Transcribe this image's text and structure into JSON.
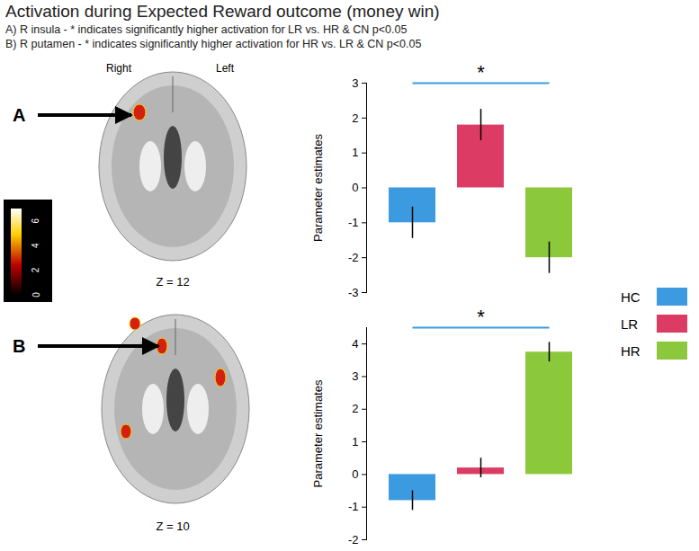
{
  "figure": {
    "title": "Activation during Expected Reward outcome (money win)",
    "notes": [
      "A) R insula - * indicates significantly higher activation for LR vs. HR & CN p<0.05",
      "B) R putamen - * indicates significantly higher activation for HR vs. LR & CN p<0.05"
    ],
    "side_labels": [
      "Right",
      "Left"
    ],
    "panels": [
      {
        "label": "A",
        "slice": "Z = 12"
      },
      {
        "label": "B",
        "slice": "Z = 10"
      }
    ],
    "colorbar": {
      "range": [
        0,
        7
      ],
      "ticks": [
        0,
        2,
        4,
        6
      ]
    }
  },
  "chart_data": [
    {
      "type": "bar",
      "ylabel": "Parameter estimates",
      "categories": [
        "HC",
        "LR",
        "HR"
      ],
      "values": [
        -1.0,
        1.8,
        -2.0
      ],
      "errors": [
        0.45,
        0.45,
        0.45
      ],
      "colors": [
        "#3c9be0",
        "#dc3c64",
        "#8cc83c"
      ],
      "ylim": [
        -3,
        3
      ],
      "yticks": [
        -3,
        -2,
        -1,
        0,
        1,
        2,
        3
      ],
      "annotation": "*",
      "tick_labels": "y"
    },
    {
      "type": "bar",
      "ylabel": "Parameter estimates",
      "categories": [
        "HC",
        "LR",
        "HR"
      ],
      "values": [
        -0.8,
        0.2,
        3.75
      ],
      "errors": [
        0.3,
        0.3,
        0.3
      ],
      "colors": [
        "#3c9be0",
        "#dc3c64",
        "#8cc83c"
      ],
      "ylim": [
        -2,
        4.5
      ],
      "yticks": [
        -2,
        -1,
        0,
        1,
        2,
        3,
        4
      ],
      "annotation": "*",
      "tick_labels": "y",
      "legend": "right"
    }
  ]
}
